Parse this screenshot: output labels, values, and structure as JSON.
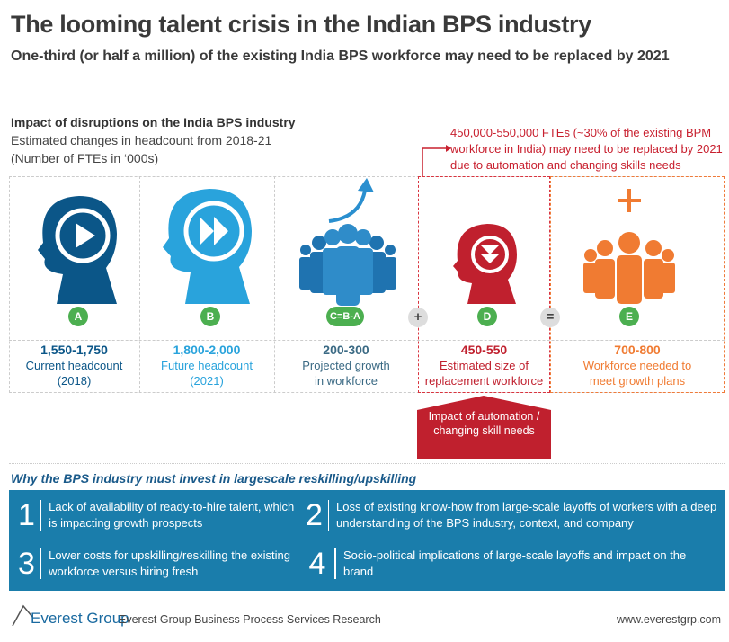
{
  "header": {
    "title": "The looming talent crisis in the Indian BPS industry",
    "subtitle": "One-third (or half a million) of the existing India BPS workforce may need to be replaced by 2021"
  },
  "section": {
    "heading": "Impact of disruptions on the India BPS industry",
    "line1": "Estimated changes in headcount from 2018-21",
    "line2": "(Number of FTEs in ‘000s)"
  },
  "note": "450,000-550,000 FTEs (~30% of the existing BPM workforce in India) may need to be replaced by 2021 due to automation and changing skills needs",
  "columns": [
    {
      "badge": "A",
      "value": "1,550-1,750",
      "label1": "Current headcount",
      "label2": "(2018)",
      "color": "#0b5688",
      "icon": "head-play-icon"
    },
    {
      "badge": "B",
      "value": "1,800-2,000",
      "label1": "Future headcount",
      "label2": "(2021)",
      "color": "#29a3dc",
      "icon": "head-fast-forward-icon"
    },
    {
      "badge": "C=B-A",
      "value": "200-300",
      "label1": "Projected growth",
      "label2": "in workforce",
      "color": "#3b6a84",
      "icon": "people-growth-icon"
    },
    {
      "badge": "D",
      "value": "450-550",
      "label1": "Estimated size of",
      "label2": "replacement workforce",
      "color": "#c0202e",
      "icon": "head-down-icon"
    },
    {
      "badge": "E",
      "value": "700-800",
      "label1": "Workforce needed to",
      "label2": "meet growth plans",
      "color": "#f07b32",
      "icon": "people-plus-icon"
    }
  ],
  "operators": {
    "plus": "+",
    "equals": "="
  },
  "impact_box": "Impact of automation / changing skill needs",
  "why": {
    "heading": "Why the BPS industry must invest in largescale reskilling/upskilling",
    "items": [
      {
        "num": "1",
        "text": "Lack of availability of ready-to-hire talent, which is impacting growth prospects"
      },
      {
        "num": "2",
        "text": "Loss of existing know-how from large-scale layoffs of workers with a deep understanding of the BPS industry, context, and company"
      },
      {
        "num": "3",
        "text": "Lower costs for upskilling/reskilling the existing workforce versus hiring fresh"
      },
      {
        "num": "4",
        "text": "Socio-political implications of large-scale layoffs and impact on the brand"
      }
    ]
  },
  "footer": {
    "logo": "Everest Group",
    "source": "Everest Group Business Process Services Research",
    "url": "www.everestgrp.com"
  }
}
